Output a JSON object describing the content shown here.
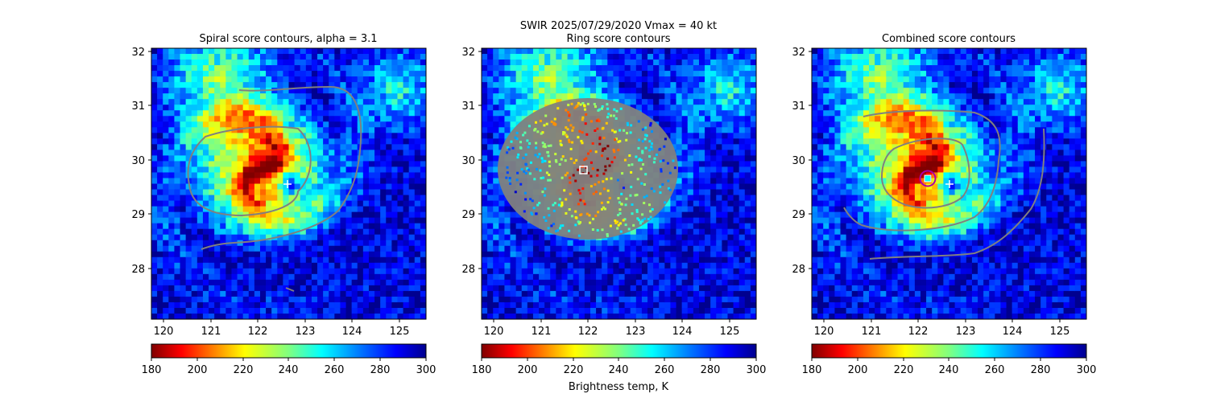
{
  "figure": {
    "suptitle_line1": "SWIR  2025/07/29/2020    Vmax = 40 kt",
    "colorbar_label": "Brightness temp, K"
  },
  "chart_data": [
    {
      "type": "heatmap",
      "title": "Spiral score contours, alpha =  3.1",
      "xlim": [
        119.8,
        125.5
      ],
      "ylim": [
        27.05,
        32.05
      ],
      "xticks": [
        "120",
        "121",
        "122",
        "123",
        "124",
        "125"
      ],
      "yticks": [
        "28",
        "29",
        "30",
        "31",
        "32"
      ],
      "colorbar": {
        "ticks": [
          "180",
          "200",
          "220",
          "240",
          "260",
          "280",
          "300"
        ],
        "range": [
          180,
          300
        ],
        "colormap": "jet_r"
      },
      "markers": [
        {
          "type": "plus",
          "color": "#ffffff",
          "x": 122.6,
          "y": 29.55
        }
      ],
      "contour_color": "#808080"
    },
    {
      "type": "heatmap",
      "title": "Ring score contours",
      "xlim": [
        119.8,
        125.5
      ],
      "ylim": [
        27.05,
        32.05
      ],
      "xticks": [
        "120",
        "121",
        "122",
        "123",
        "124",
        "125"
      ],
      "yticks": [
        "28",
        "29",
        "30",
        "31",
        "32"
      ],
      "colorbar": {
        "ticks": [
          "180",
          "200",
          "220",
          "240",
          "260",
          "280",
          "300"
        ],
        "range": [
          180,
          300
        ],
        "colormap": "jet_r"
      },
      "markers": [
        {
          "type": "square",
          "color": "#ffffff",
          "x": 121.9,
          "y": 29.8
        }
      ],
      "contour_color": "#808080"
    },
    {
      "type": "heatmap",
      "title": "Combined score contours",
      "xlim": [
        119.8,
        125.5
      ],
      "ylim": [
        27.05,
        32.05
      ],
      "xticks": [
        "120",
        "121",
        "122",
        "123",
        "124",
        "125"
      ],
      "yticks": [
        "28",
        "29",
        "30",
        "31",
        "32"
      ],
      "colorbar": {
        "ticks": [
          "180",
          "200",
          "220",
          "240",
          "260",
          "280",
          "300"
        ],
        "range": [
          180,
          300
        ],
        "colormap": "jet_r"
      },
      "markers": [
        {
          "type": "plus",
          "color": "#ffffff",
          "x": 122.65,
          "y": 29.55
        },
        {
          "type": "circle",
          "color": "#aa00aa",
          "x": 122.2,
          "y": 29.65
        },
        {
          "type": "square",
          "color": "#00ffff",
          "x": 122.2,
          "y": 29.65
        }
      ],
      "contour_color": "#808080"
    }
  ]
}
